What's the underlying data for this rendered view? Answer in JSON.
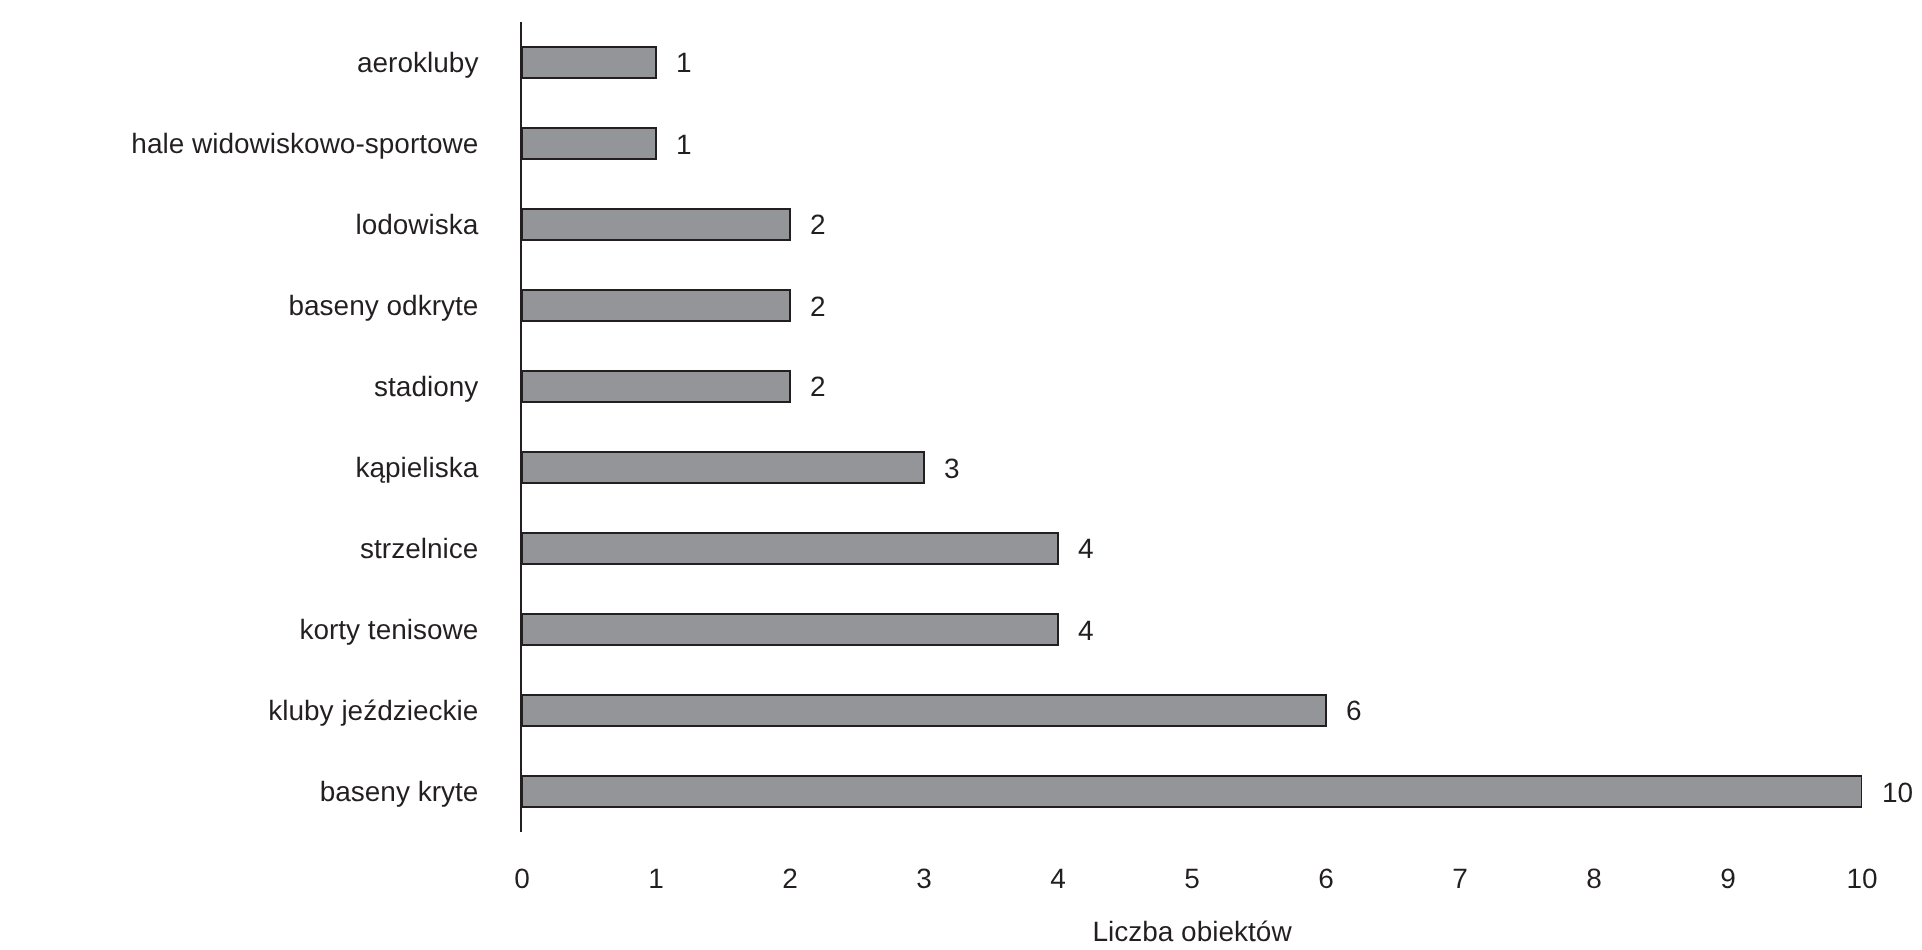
{
  "chart_data": {
    "type": "bar",
    "orientation": "horizontal",
    "categories": [
      "aerokluby",
      "hale widowiskowo-sportowe",
      "lodowiska",
      "baseny odkryte",
      "stadiony",
      "kąpieliska",
      "strzelnice",
      "korty tenisowe",
      "kluby jeździeckie",
      "baseny kryte"
    ],
    "values": [
      1,
      1,
      2,
      2,
      2,
      3,
      4,
      4,
      6,
      10
    ],
    "color": "#939598",
    "xlabel": "Liczba obiektów",
    "xlim": [
      0,
      10
    ],
    "xticks": [
      0,
      1,
      2,
      3,
      4,
      5,
      6,
      7,
      8,
      9,
      10
    ],
    "data_labels": true
  }
}
